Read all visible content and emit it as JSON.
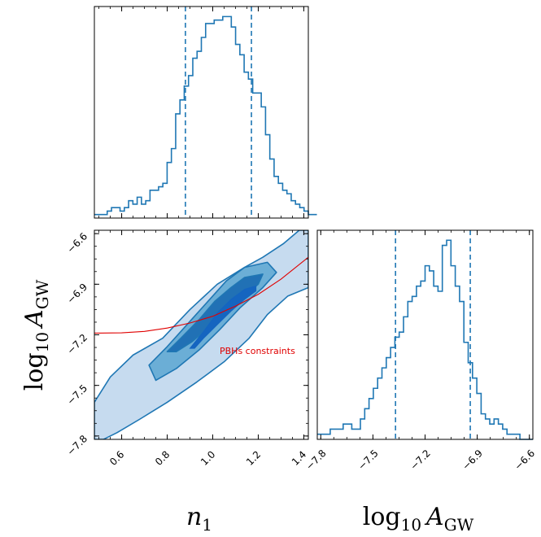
{
  "chart_data": {
    "type": "corner",
    "colors": {
      "main": "#1f77b4",
      "fill_levels": [
        "#c6dbef",
        "#6baed6",
        "#2171b5"
      ],
      "annotation": "#e00000"
    },
    "parameters": [
      {
        "label_base": "log",
        "label_sub": "10",
        "label_var": "A",
        "label_var_sub": "GW"
      },
      {
        "label_var": "n",
        "label_var_sub": "1"
      }
    ],
    "axes": {
      "n1": {
        "lim": [
          0.48,
          1.42
        ],
        "ticks": [
          0.6,
          0.8,
          1.0,
          1.2,
          1.4
        ]
      },
      "logA": {
        "lim": [
          -7.82,
          -6.58
        ],
        "ticks": [
          -7.8,
          -7.5,
          -7.2,
          -6.9,
          -6.6
        ]
      }
    },
    "tick_labels": {
      "n1": [
        "0.6",
        "0.8",
        "1.0",
        "1.2",
        "1.4"
      ],
      "logA": [
        "−7.8",
        "−7.5",
        "−7.2",
        "−6.9",
        "−6.6"
      ]
    },
    "hist_n1": {
      "quantiles": [
        0.88,
        1.17
      ],
      "bins": {
        "start": 0.48,
        "width": 0.0188
      },
      "counts": [
        1,
        1,
        1,
        2,
        3,
        3,
        2,
        3,
        5,
        4,
        6,
        4,
        5,
        8,
        8,
        9,
        10,
        16,
        20,
        30,
        34,
        38,
        41,
        46,
        48,
        52,
        56,
        56,
        57,
        57,
        58,
        58,
        55,
        50,
        47,
        42,
        40,
        36,
        36,
        32,
        24,
        17,
        12,
        10,
        8,
        7,
        5,
        4,
        3,
        2,
        1,
        1
      ]
    },
    "hist_logA": {
      "quantiles": [
        -7.37,
        -6.94
      ],
      "bins": {
        "start": -7.82,
        "width": 0.0248
      },
      "counts": [
        1,
        1,
        1,
        2,
        2,
        2,
        3,
        3,
        2,
        2,
        4,
        6,
        8,
        10,
        12,
        14,
        16,
        18,
        20,
        21,
        24,
        27,
        28,
        30,
        31,
        34,
        33,
        30,
        29,
        38,
        39,
        34,
        30,
        27,
        19,
        15,
        12,
        9,
        5,
        4,
        3,
        4,
        3,
        2,
        1,
        1,
        1,
        0,
        0,
        0
      ]
    },
    "contours_2d": {
      "levels": [
        "outer",
        "middle",
        "inner"
      ],
      "outer": [
        [
          0.48,
          -7.82
        ],
        [
          0.48,
          -7.6
        ],
        [
          0.55,
          -7.45
        ],
        [
          0.65,
          -7.32
        ],
        [
          0.78,
          -7.22
        ],
        [
          0.9,
          -7.05
        ],
        [
          1.02,
          -6.9
        ],
        [
          1.14,
          -6.8
        ],
        [
          1.22,
          -6.74
        ],
        [
          1.31,
          -6.66
        ],
        [
          1.38,
          -6.58
        ],
        [
          1.42,
          -6.58
        ],
        [
          1.42,
          -6.92
        ],
        [
          1.33,
          -6.97
        ],
        [
          1.24,
          -7.08
        ],
        [
          1.16,
          -7.22
        ],
        [
          1.05,
          -7.36
        ],
        [
          0.93,
          -7.48
        ],
        [
          0.8,
          -7.6
        ],
        [
          0.68,
          -7.7
        ],
        [
          0.58,
          -7.78
        ],
        [
          0.52,
          -7.82
        ]
      ],
      "middle": [
        [
          0.72,
          -7.38
        ],
        [
          0.8,
          -7.27
        ],
        [
          0.9,
          -7.12
        ],
        [
          0.98,
          -7.0
        ],
        [
          1.06,
          -6.88
        ],
        [
          1.14,
          -6.8
        ],
        [
          1.24,
          -6.77
        ],
        [
          1.28,
          -6.83
        ],
        [
          1.22,
          -6.92
        ],
        [
          1.12,
          -7.04
        ],
        [
          1.03,
          -7.17
        ],
        [
          0.94,
          -7.29
        ],
        [
          0.84,
          -7.4
        ],
        [
          0.75,
          -7.47
        ]
      ],
      "inner": [
        [
          0.8,
          -7.3
        ],
        [
          0.86,
          -7.22
        ],
        [
          0.94,
          -7.11
        ],
        [
          1.01,
          -7.0
        ],
        [
          1.08,
          -6.92
        ],
        [
          1.14,
          -6.86
        ],
        [
          1.22,
          -6.84
        ],
        [
          1.2,
          -6.9
        ],
        [
          1.14,
          -6.97
        ],
        [
          1.06,
          -7.06
        ],
        [
          0.98,
          -7.16
        ],
        [
          0.91,
          -7.24
        ],
        [
          0.84,
          -7.3
        ]
      ],
      "core": [
        [
          0.9,
          -7.28
        ],
        [
          0.96,
          -7.18
        ],
        [
          1.02,
          -7.07
        ],
        [
          1.08,
          -6.99
        ],
        [
          1.14,
          -6.93
        ],
        [
          1.19,
          -6.91
        ],
        [
          1.19,
          -6.94
        ],
        [
          1.14,
          -6.99
        ],
        [
          1.08,
          -7.06
        ],
        [
          1.02,
          -7.14
        ],
        [
          0.96,
          -7.22
        ],
        [
          0.92,
          -7.28
        ]
      ]
    },
    "constraint_curve": {
      "label": "PBHs constraints",
      "x": [
        0.48,
        0.6,
        0.7,
        0.8,
        0.9,
        1.0,
        1.1,
        1.2,
        1.3,
        1.42
      ],
      "y": [
        -7.19,
        -7.188,
        -7.18,
        -7.16,
        -7.13,
        -7.09,
        -7.03,
        -6.96,
        -6.87,
        -6.74
      ]
    }
  }
}
